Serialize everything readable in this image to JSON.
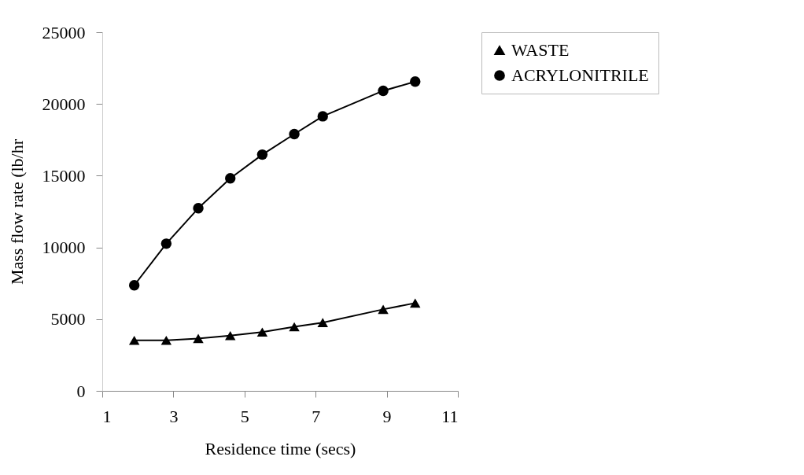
{
  "chart_data": {
    "type": "line",
    "xlabel": "Residence time (secs)",
    "ylabel": "Mass flow rate (lb/hr",
    "x": [
      1.9,
      2.8,
      3.7,
      4.6,
      5.5,
      6.4,
      7.2,
      8.9,
      9.8
    ],
    "series": [
      {
        "name": "WASTE",
        "color": "#000000",
        "marker": "triangle",
        "values": [
          3520,
          3520,
          3650,
          3850,
          4100,
          4470,
          4760,
          5680,
          6120
        ]
      },
      {
        "name": "ACRYLONITRILE",
        "color": "#000000",
        "marker": "circle",
        "values": [
          7360,
          10260,
          12730,
          14820,
          16470,
          17900,
          19140,
          20920,
          21560
        ]
      }
    ],
    "xlim": [
      1,
      11
    ],
    "xticks": [
      1,
      3,
      5,
      7,
      9,
      11
    ],
    "ylim": [
      0,
      25000
    ],
    "yticks": [
      0,
      5000,
      10000,
      15000,
      20000,
      25000
    ],
    "grid": false,
    "legend": "right",
    "line_style": "solid"
  }
}
